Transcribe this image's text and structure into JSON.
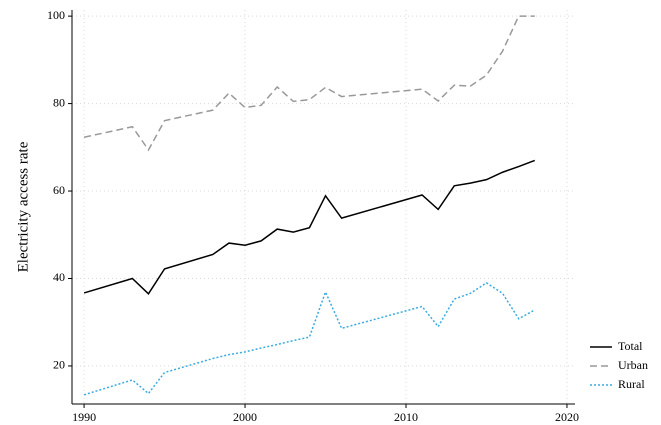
{
  "chart_data": {
    "type": "line",
    "y_label": "Electricity access rate",
    "x": [
      1990,
      1993,
      1994,
      1995,
      1998,
      1999,
      2000,
      2001,
      2002,
      2003,
      2004,
      2005,
      2006,
      2011,
      2012,
      2013,
      2014,
      2015,
      2016,
      2017,
      2018
    ],
    "series": [
      {
        "name": "Total",
        "color": "#000000",
        "dash": "solid",
        "values": [
          36.7,
          40.0,
          36.5,
          42.2,
          45.5,
          48.1,
          47.6,
          48.6,
          51.3,
          50.6,
          51.6,
          58.9,
          53.8,
          59.1,
          55.8,
          61.2,
          61.8,
          62.6,
          64.3,
          65.6,
          67.0
        ]
      },
      {
        "name": "Urban",
        "color": "#999999",
        "dash": "dashed",
        "values": [
          72.3,
          74.7,
          69.4,
          76.1,
          78.5,
          82.4,
          79.1,
          79.6,
          83.8,
          80.5,
          80.9,
          83.7,
          81.6,
          83.3,
          80.6,
          84.2,
          84.0,
          86.5,
          92.0,
          100,
          100
        ]
      },
      {
        "name": "Rural",
        "color": "#3aabe0",
        "dash": "dotted",
        "values": [
          13.4,
          16.8,
          13.7,
          18.5,
          21.7,
          22.6,
          23.2,
          24.1,
          24.9,
          25.8,
          26.6,
          36.9,
          28.6,
          33.6,
          29.0,
          35.3,
          36.6,
          39.0,
          36.6,
          30.8,
          32.8
        ]
      }
    ],
    "xlim": [
      1989.25,
      2020.5
    ],
    "xticks": [
      1990,
      2000,
      2010,
      2020
    ],
    "ylim": [
      11.3,
      101.4
    ],
    "yticks": [
      20,
      40,
      60,
      80,
      100
    ],
    "grid": true,
    "legend": "bottom-right"
  }
}
